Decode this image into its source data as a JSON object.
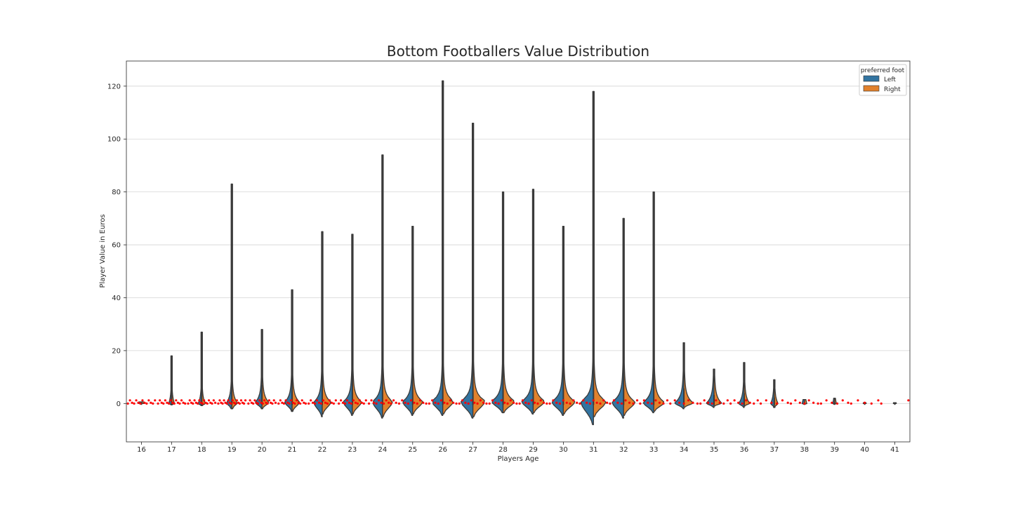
{
  "chart_data": {
    "type": "violin",
    "title": "Bottom Footballers Value Distribution",
    "xlabel": "Players Age",
    "ylabel": "Player Value in Euros",
    "ylim": [
      -14.5,
      129.5
    ],
    "yticks": [
      0,
      20,
      40,
      60,
      80,
      100,
      120
    ],
    "grid": "horizontal",
    "split": true,
    "overlay": "swarm points (red) at low values",
    "categories": [
      "16",
      "17",
      "18",
      "19",
      "20",
      "21",
      "22",
      "23",
      "24",
      "25",
      "26",
      "27",
      "28",
      "29",
      "30",
      "31",
      "32",
      "33",
      "34",
      "35",
      "36",
      "37",
      "38",
      "39",
      "40",
      "41"
    ],
    "series": [
      {
        "name": "Left",
        "color": "#3274a1",
        "min": [
          0.0,
          -0.5,
          -0.8,
          -2.0,
          -2.0,
          -3.0,
          -5.0,
          -4.5,
          -5.5,
          -4.5,
          -4.5,
          -5.5,
          -3.5,
          -4.0,
          -4.5,
          -8.0,
          -5.5,
          -3.5,
          -2.0,
          -1.5,
          -1.5,
          -1.5,
          -0.3,
          -0.3,
          0.0,
          0.0
        ],
        "max": [
          0.6,
          18.0,
          27.0,
          83.0,
          28.0,
          43.0,
          65.0,
          64.0,
          94.0,
          67.0,
          122.0,
          106.0,
          80.0,
          81.0,
          67.0,
          118.0,
          70.0,
          80.0,
          23.0,
          13.0,
          15.5,
          9.0,
          1.5,
          2.0,
          0.3,
          0.3
        ],
        "peak_width": [
          0.1,
          0.1,
          0.12,
          0.18,
          0.22,
          0.24,
          0.28,
          0.3,
          0.33,
          0.33,
          0.36,
          0.4,
          0.38,
          0.38,
          0.38,
          0.42,
          0.38,
          0.35,
          0.3,
          0.25,
          0.18,
          0.12,
          0.08,
          0.06,
          0.05,
          0.05
        ],
        "mode": [
          0.0,
          0.0,
          0.0,
          0.3,
          0.5,
          0.6,
          0.6,
          0.7,
          0.8,
          0.8,
          0.9,
          1.0,
          0.9,
          0.9,
          0.8,
          0.9,
          0.7,
          0.5,
          0.3,
          0.2,
          0.1,
          0.1,
          0.0,
          0.0,
          0.0,
          0.0
        ]
      },
      {
        "name": "Right",
        "color": "#e1812c",
        "min": [
          0.0,
          -0.5,
          -0.8,
          -2.0,
          -2.0,
          -3.0,
          -4.0,
          -4.0,
          -5.0,
          -4.0,
          -4.0,
          -5.0,
          -3.5,
          -3.5,
          -4.0,
          -5.0,
          -4.5,
          -3.0,
          -1.5,
          -1.0,
          -1.0,
          -1.5,
          -0.3,
          -0.2,
          0.0,
          0.0
        ],
        "max": [
          0.6,
          18.0,
          27.0,
          83.0,
          28.0,
          43.0,
          65.0,
          64.0,
          94.0,
          67.0,
          122.0,
          106.0,
          80.0,
          81.0,
          67.0,
          118.0,
          70.0,
          80.0,
          23.0,
          13.0,
          15.5,
          9.0,
          1.5,
          2.0,
          0.3,
          0.3
        ],
        "peak_width": [
          0.1,
          0.1,
          0.12,
          0.18,
          0.22,
          0.24,
          0.28,
          0.3,
          0.33,
          0.33,
          0.36,
          0.4,
          0.38,
          0.38,
          0.38,
          0.42,
          0.38,
          0.35,
          0.3,
          0.25,
          0.18,
          0.12,
          0.08,
          0.06,
          0.05,
          0.05
        ],
        "mode": [
          0.0,
          0.0,
          0.0,
          0.3,
          0.5,
          0.6,
          0.6,
          0.7,
          0.8,
          0.8,
          0.9,
          1.0,
          0.9,
          0.9,
          0.8,
          0.9,
          0.7,
          0.5,
          0.3,
          0.2,
          0.1,
          0.1,
          0.0,
          0.0,
          0.0,
          0.0
        ]
      }
    ],
    "legend": {
      "title": "preferred foot",
      "placement": "top-right",
      "entries": [
        "Left",
        "Right"
      ]
    },
    "point_color": "#ff0000"
  }
}
